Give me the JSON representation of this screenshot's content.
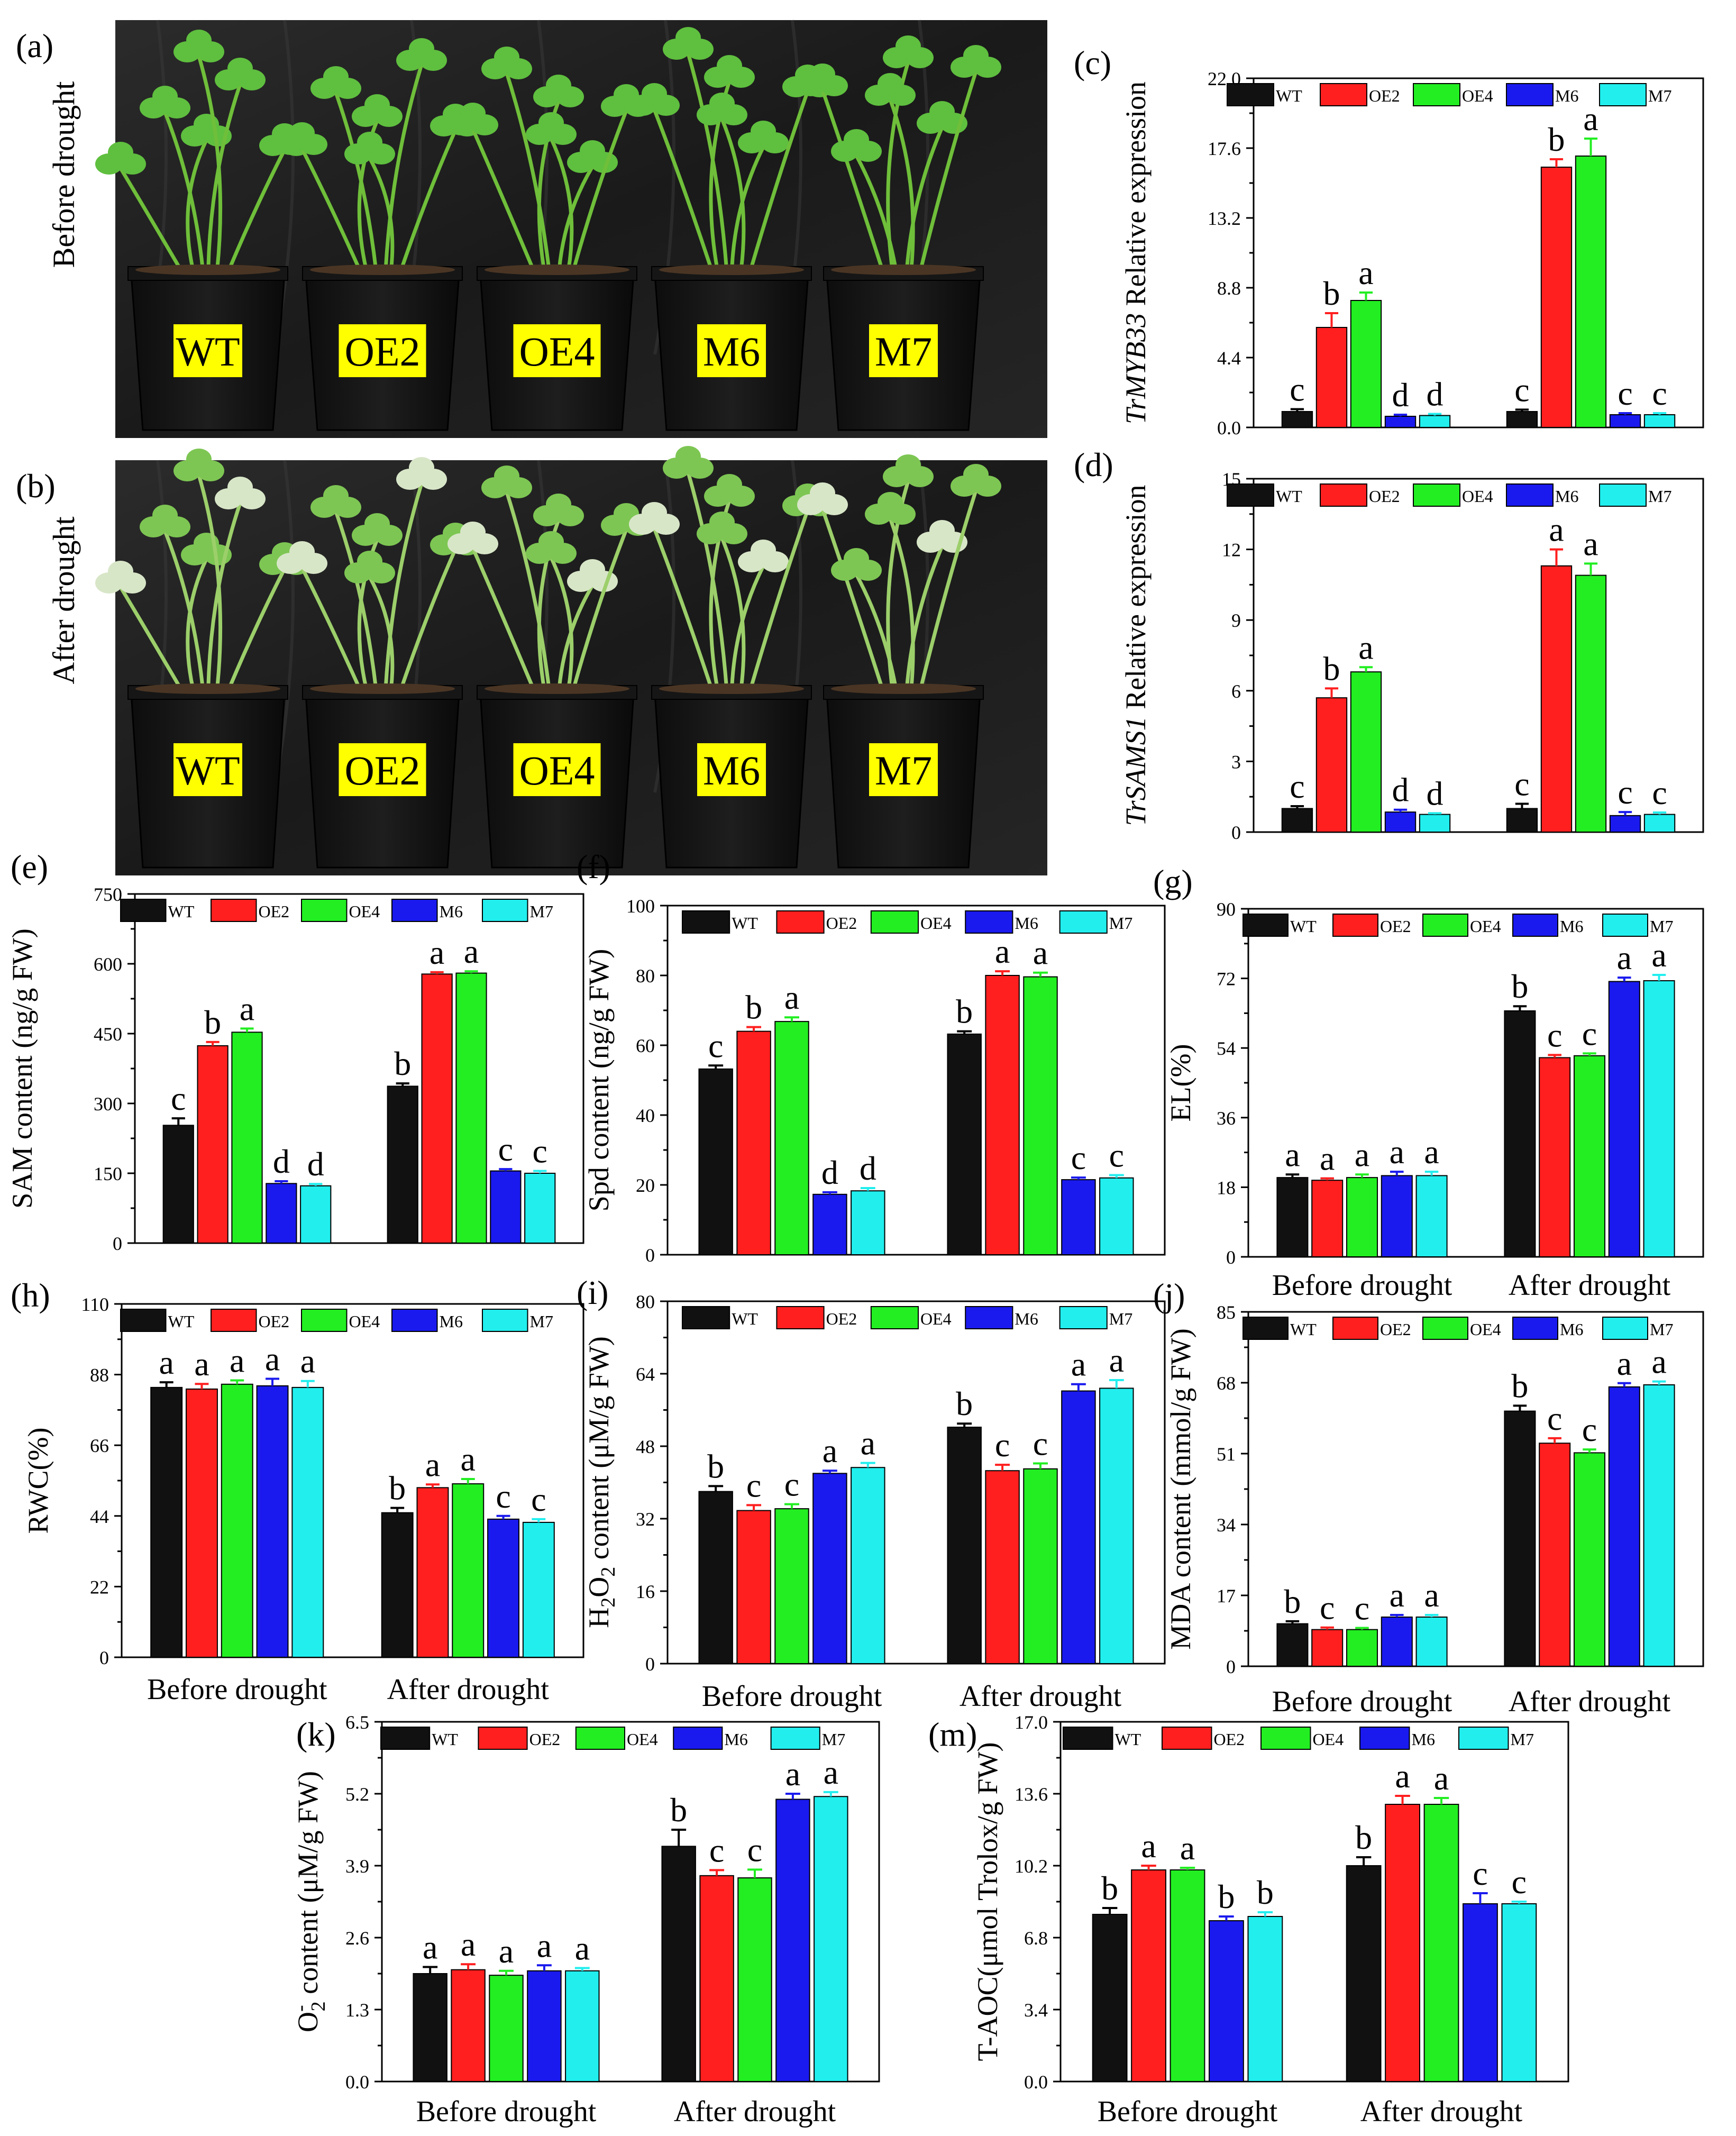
{
  "figure": {
    "palette": {
      "WT": "#111111",
      "OE2": "#ff1f1f",
      "OE4": "#22ee22",
      "M6": "#1a1aee",
      "M7": "#22eeee"
    },
    "legend_entries": [
      "WT",
      "OE2",
      "OE4",
      "M6",
      "M7"
    ]
  },
  "photo_panels": [
    {
      "letter": "(a)",
      "side_label": "Before drought",
      "pots": [
        "WT",
        "OE2",
        "OE4",
        "M6",
        "M7"
      ]
    },
    {
      "letter": "(b)",
      "side_label": "After drought",
      "pots": [
        "WT",
        "OE2",
        "OE4",
        "M6",
        "M7"
      ]
    }
  ],
  "chart_data": [
    {
      "letter": "(c)",
      "type": "bar",
      "ylabel": "TrMYB33 Relative expression",
      "ylabel_italic": "TrMYB33",
      "ylabel_rest": " Relative expression",
      "ylim": [
        0,
        22
      ],
      "yticks": [
        "0.0",
        "4.4",
        "8.8",
        "13.2",
        "17.6",
        "22.0"
      ],
      "categories": [
        "",
        ""
      ],
      "series": [
        {
          "name": "WT",
          "values": [
            1.0,
            1.0
          ],
          "err": [
            0.15,
            0.12
          ],
          "sig": [
            "c",
            "c"
          ]
        },
        {
          "name": "OE2",
          "values": [
            6.3,
            16.4
          ],
          "err": [
            0.9,
            0.5
          ],
          "sig": [
            "b",
            "b"
          ]
        },
        {
          "name": "OE4",
          "values": [
            8.0,
            17.1
          ],
          "err": [
            0.5,
            1.1
          ],
          "sig": [
            "a",
            "a"
          ]
        },
        {
          "name": "M6",
          "values": [
            0.7,
            0.8
          ],
          "err": [
            0.1,
            0.1
          ],
          "sig": [
            "d",
            "c"
          ]
        },
        {
          "name": "M7",
          "values": [
            0.75,
            0.8
          ],
          "err": [
            0.1,
            0.1
          ],
          "sig": [
            "d",
            "c"
          ]
        }
      ]
    },
    {
      "letter": "(d)",
      "type": "bar",
      "ylabel": "TrSAMS1 Relative expression",
      "ylabel_italic": "TrSAMS1",
      "ylabel_rest": " Relative expression",
      "ylim": [
        0,
        15
      ],
      "yticks": [
        "0",
        "3",
        "6",
        "9",
        "12",
        "15"
      ],
      "categories": [
        "",
        ""
      ],
      "series": [
        {
          "name": "WT",
          "values": [
            1.0,
            1.0
          ],
          "err": [
            0.1,
            0.2
          ],
          "sig": [
            "c",
            "c"
          ]
        },
        {
          "name": "OE2",
          "values": [
            5.7,
            11.3
          ],
          "err": [
            0.4,
            0.7
          ],
          "sig": [
            "b",
            "a"
          ]
        },
        {
          "name": "OE4",
          "values": [
            6.8,
            10.9
          ],
          "err": [
            0.2,
            0.5
          ],
          "sig": [
            "a",
            "a"
          ]
        },
        {
          "name": "M6",
          "values": [
            0.85,
            0.7
          ],
          "err": [
            0.1,
            0.15
          ],
          "sig": [
            "d",
            "c"
          ]
        },
        {
          "name": "M7",
          "values": [
            0.75,
            0.75
          ],
          "err": [
            0.05,
            0.08
          ],
          "sig": [
            "d",
            "c"
          ]
        }
      ]
    },
    {
      "letter": "(e)",
      "type": "bar",
      "ylabel": "SAM content (ng/g FW)",
      "ylim": [
        0,
        750
      ],
      "yticks": [
        "0",
        "150",
        "300",
        "450",
        "600",
        "750"
      ],
      "categories": [
        "",
        ""
      ],
      "series": [
        {
          "name": "WT",
          "values": [
            253,
            337
          ],
          "err": [
            15,
            6
          ],
          "sig": [
            "c",
            "b"
          ]
        },
        {
          "name": "OE2",
          "values": [
            424,
            578
          ],
          "err": [
            8,
            4
          ],
          "sig": [
            "b",
            "a"
          ]
        },
        {
          "name": "OE4",
          "values": [
            453,
            580
          ],
          "err": [
            8,
            4
          ],
          "sig": [
            "a",
            "a"
          ]
        },
        {
          "name": "M6",
          "values": [
            128,
            155
          ],
          "err": [
            5,
            4
          ],
          "sig": [
            "d",
            "c"
          ]
        },
        {
          "name": "M7",
          "values": [
            123,
            150
          ],
          "err": [
            4,
            5
          ],
          "sig": [
            "d",
            "c"
          ]
        }
      ]
    },
    {
      "letter": "(f)",
      "type": "bar",
      "ylabel": "Spd content (ng/g FW)",
      "ylim": [
        0,
        100
      ],
      "yticks": [
        "0",
        "20",
        "40",
        "60",
        "80",
        "100"
      ],
      "categories": [
        "",
        ""
      ],
      "series": [
        {
          "name": "WT",
          "values": [
            53.2,
            63.2
          ],
          "err": [
            1.0,
            0.8
          ],
          "sig": [
            "c",
            "b"
          ]
        },
        {
          "name": "OE2",
          "values": [
            64.0,
            80.0
          ],
          "err": [
            1.2,
            1.2
          ],
          "sig": [
            "b",
            "a"
          ]
        },
        {
          "name": "OE4",
          "values": [
            66.8,
            79.6
          ],
          "err": [
            1.2,
            1.2
          ],
          "sig": [
            "a",
            "a"
          ]
        },
        {
          "name": "M6",
          "values": [
            17.3,
            21.5
          ],
          "err": [
            0.6,
            0.6
          ],
          "sig": [
            "d",
            "c"
          ]
        },
        {
          "name": "M7",
          "values": [
            18.3,
            22.0
          ],
          "err": [
            0.8,
            0.8
          ],
          "sig": [
            "d",
            "c"
          ]
        }
      ]
    },
    {
      "letter": "(g)",
      "type": "bar",
      "ylabel": "EL(%)",
      "ylim": [
        0,
        90
      ],
      "yticks": [
        "0",
        "18",
        "36",
        "54",
        "72",
        "90"
      ],
      "categories": [
        "Before drought",
        "After drought"
      ],
      "series": [
        {
          "name": "WT",
          "values": [
            20.5,
            63.6
          ],
          "err": [
            0.8,
            1.2
          ],
          "sig": [
            "a",
            "b"
          ]
        },
        {
          "name": "OE2",
          "values": [
            19.8,
            51.5
          ],
          "err": [
            0.5,
            0.7
          ],
          "sig": [
            "a",
            "c"
          ]
        },
        {
          "name": "OE4",
          "values": [
            20.5,
            52.0
          ],
          "err": [
            0.8,
            0.6
          ],
          "sig": [
            "a",
            "c"
          ]
        },
        {
          "name": "M6",
          "values": [
            21.0,
            71.2
          ],
          "err": [
            1.0,
            1.0
          ],
          "sig": [
            "a",
            "a"
          ]
        },
        {
          "name": "M7",
          "values": [
            21.0,
            71.4
          ],
          "err": [
            1.0,
            1.5
          ],
          "sig": [
            "a",
            "a"
          ]
        }
      ]
    },
    {
      "letter": "(h)",
      "type": "bar",
      "ylabel": "RWC(%)",
      "ylim": [
        0,
        110
      ],
      "yticks": [
        "0",
        "22",
        "44",
        "66",
        "88",
        "110"
      ],
      "categories": [
        "Before drought",
        "After drought"
      ],
      "series": [
        {
          "name": "WT",
          "values": [
            84.0,
            45.0
          ],
          "err": [
            1.6,
            1.5
          ],
          "sig": [
            "a",
            "b"
          ]
        },
        {
          "name": "OE2",
          "values": [
            83.5,
            52.8
          ],
          "err": [
            1.6,
            1.0
          ],
          "sig": [
            "a",
            "a"
          ]
        },
        {
          "name": "OE4",
          "values": [
            85.0,
            54.0
          ],
          "err": [
            1.2,
            1.5
          ],
          "sig": [
            "a",
            "a"
          ]
        },
        {
          "name": "M6",
          "values": [
            84.5,
            43.0
          ],
          "err": [
            2.2,
            1.0
          ],
          "sig": [
            "a",
            "c"
          ]
        },
        {
          "name": "M7",
          "values": [
            84.0,
            42.0
          ],
          "err": [
            2.0,
            1.0
          ],
          "sig": [
            "a",
            "c"
          ]
        }
      ]
    },
    {
      "letter": "(i)",
      "type": "bar",
      "ylabel": "H2O2 content (μM/g FW)",
      "ylabel_rich": [
        "H",
        "2",
        "O",
        "2",
        " content (μM/g FW)"
      ],
      "ylim": [
        0,
        80
      ],
      "yticks": [
        "0",
        "16",
        "32",
        "48",
        "64",
        "80"
      ],
      "categories": [
        "Before drought",
        "After drought"
      ],
      "series": [
        {
          "name": "WT",
          "values": [
            38.0,
            52.2
          ],
          "err": [
            1.2,
            0.8
          ],
          "sig": [
            "b",
            "b"
          ]
        },
        {
          "name": "OE2",
          "values": [
            33.8,
            42.6
          ],
          "err": [
            1.2,
            1.3
          ],
          "sig": [
            "c",
            "c"
          ]
        },
        {
          "name": "OE4",
          "values": [
            34.2,
            43.0
          ],
          "err": [
            1.0,
            1.2
          ],
          "sig": [
            "c",
            "c"
          ]
        },
        {
          "name": "M6",
          "values": [
            42.0,
            60.2
          ],
          "err": [
            0.6,
            1.5
          ],
          "sig": [
            "a",
            "a"
          ]
        },
        {
          "name": "M7",
          "values": [
            43.3,
            60.8
          ],
          "err": [
            1.0,
            1.8
          ],
          "sig": [
            "a",
            "a"
          ]
        }
      ]
    },
    {
      "letter": "(j)",
      "type": "bar",
      "ylabel": "MDA content (mmol/g FW)",
      "ylim": [
        0,
        85
      ],
      "yticks": [
        "0",
        "17",
        "34",
        "51",
        "68",
        "85"
      ],
      "categories": [
        "Before drought",
        "After drought"
      ],
      "series": [
        {
          "name": "WT",
          "values": [
            10.2,
            61.2
          ],
          "err": [
            0.6,
            1.3
          ],
          "sig": [
            "b",
            "b"
          ]
        },
        {
          "name": "OE2",
          "values": [
            8.8,
            53.5
          ],
          "err": [
            0.5,
            1.2
          ],
          "sig": [
            "c",
            "c"
          ]
        },
        {
          "name": "OE4",
          "values": [
            8.8,
            51.2
          ],
          "err": [
            0.4,
            0.8
          ],
          "sig": [
            "c",
            "c"
          ]
        },
        {
          "name": "M6",
          "values": [
            11.8,
            67.0
          ],
          "err": [
            0.5,
            0.9
          ],
          "sig": [
            "a",
            "a"
          ]
        },
        {
          "name": "M7",
          "values": [
            11.8,
            67.5
          ],
          "err": [
            0.5,
            0.8
          ],
          "sig": [
            "a",
            "a"
          ]
        }
      ]
    },
    {
      "letter": "(k)",
      "type": "bar",
      "ylabel": "O2- content (μM/g FW)",
      "ylabel_rich": [
        "O",
        "-",
        "2",
        " content (μM/g FW)"
      ],
      "ylim": [
        0,
        6.5
      ],
      "yticks": [
        "0.0",
        "1.3",
        "2.6",
        "3.9",
        "5.2",
        "6.5"
      ],
      "categories": [
        "Before drought",
        "After drought"
      ],
      "series": [
        {
          "name": "WT",
          "values": [
            1.95,
            4.25
          ],
          "err": [
            0.12,
            0.3
          ],
          "sig": [
            "a",
            "b"
          ]
        },
        {
          "name": "OE2",
          "values": [
            2.02,
            3.72
          ],
          "err": [
            0.1,
            0.1
          ],
          "sig": [
            "a",
            "c"
          ]
        },
        {
          "name": "OE4",
          "values": [
            1.92,
            3.68
          ],
          "err": [
            0.08,
            0.15
          ],
          "sig": [
            "a",
            "c"
          ]
        },
        {
          "name": "M6",
          "values": [
            2.0,
            5.1
          ],
          "err": [
            0.1,
            0.1
          ],
          "sig": [
            "a",
            "a"
          ]
        },
        {
          "name": "M7",
          "values": [
            2.0,
            5.15
          ],
          "err": [
            0.05,
            0.08
          ],
          "sig": [
            "a",
            "a"
          ]
        }
      ]
    },
    {
      "letter": "(m)",
      "type": "bar",
      "ylabel": "T-AOC(μmol Trolox/g FW)",
      "ylim": [
        0,
        17
      ],
      "yticks": [
        "0.0",
        "3.4",
        "6.8",
        "10.2",
        "13.6",
        "17.0"
      ],
      "categories": [
        "Before drought",
        "After drought"
      ],
      "series": [
        {
          "name": "WT",
          "values": [
            7.9,
            10.2
          ],
          "err": [
            0.3,
            0.4
          ],
          "sig": [
            "b",
            "b"
          ]
        },
        {
          "name": "OE2",
          "values": [
            10.0,
            13.1
          ],
          "err": [
            0.2,
            0.4
          ],
          "sig": [
            "a",
            "a"
          ]
        },
        {
          "name": "OE4",
          "values": [
            10.0,
            13.1
          ],
          "err": [
            0.1,
            0.3
          ],
          "sig": [
            "a",
            "a"
          ]
        },
        {
          "name": "M6",
          "values": [
            7.6,
            8.4
          ],
          "err": [
            0.2,
            0.5
          ],
          "sig": [
            "b",
            "c"
          ]
        },
        {
          "name": "M7",
          "values": [
            7.8,
            8.4
          ],
          "err": [
            0.2,
            0.1
          ],
          "sig": [
            "b",
            "c"
          ]
        }
      ]
    }
  ]
}
